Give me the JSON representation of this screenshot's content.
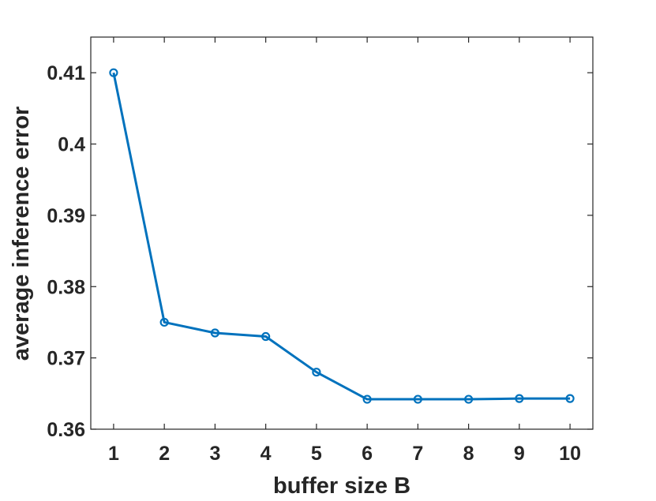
{
  "chart_data": {
    "type": "line",
    "title": "",
    "xlabel": "buffer size B",
    "ylabel": "average inference error",
    "x": [
      1,
      2,
      3,
      4,
      5,
      6,
      7,
      8,
      9,
      10
    ],
    "series": [
      {
        "values": [
          0.41,
          0.375,
          0.3735,
          0.373,
          0.368,
          0.3642,
          0.3642,
          0.3642,
          0.3643,
          0.3643
        ],
        "color": "#0072BD",
        "marker": "circle"
      }
    ],
    "xlim": [
      0.55,
      10.45
    ],
    "ylim": [
      0.36,
      0.415
    ],
    "xticks": [
      "1",
      "2",
      "3",
      "4",
      "5",
      "6",
      "7",
      "8",
      "9",
      "10"
    ],
    "yticks": [
      "0.36",
      "0.37",
      "0.38",
      "0.39",
      "0.4",
      "0.41"
    ],
    "ytick_values": [
      0.36,
      0.37,
      0.38,
      0.39,
      0.4,
      0.41
    ],
    "grid": false,
    "axis_color": "#262626"
  }
}
